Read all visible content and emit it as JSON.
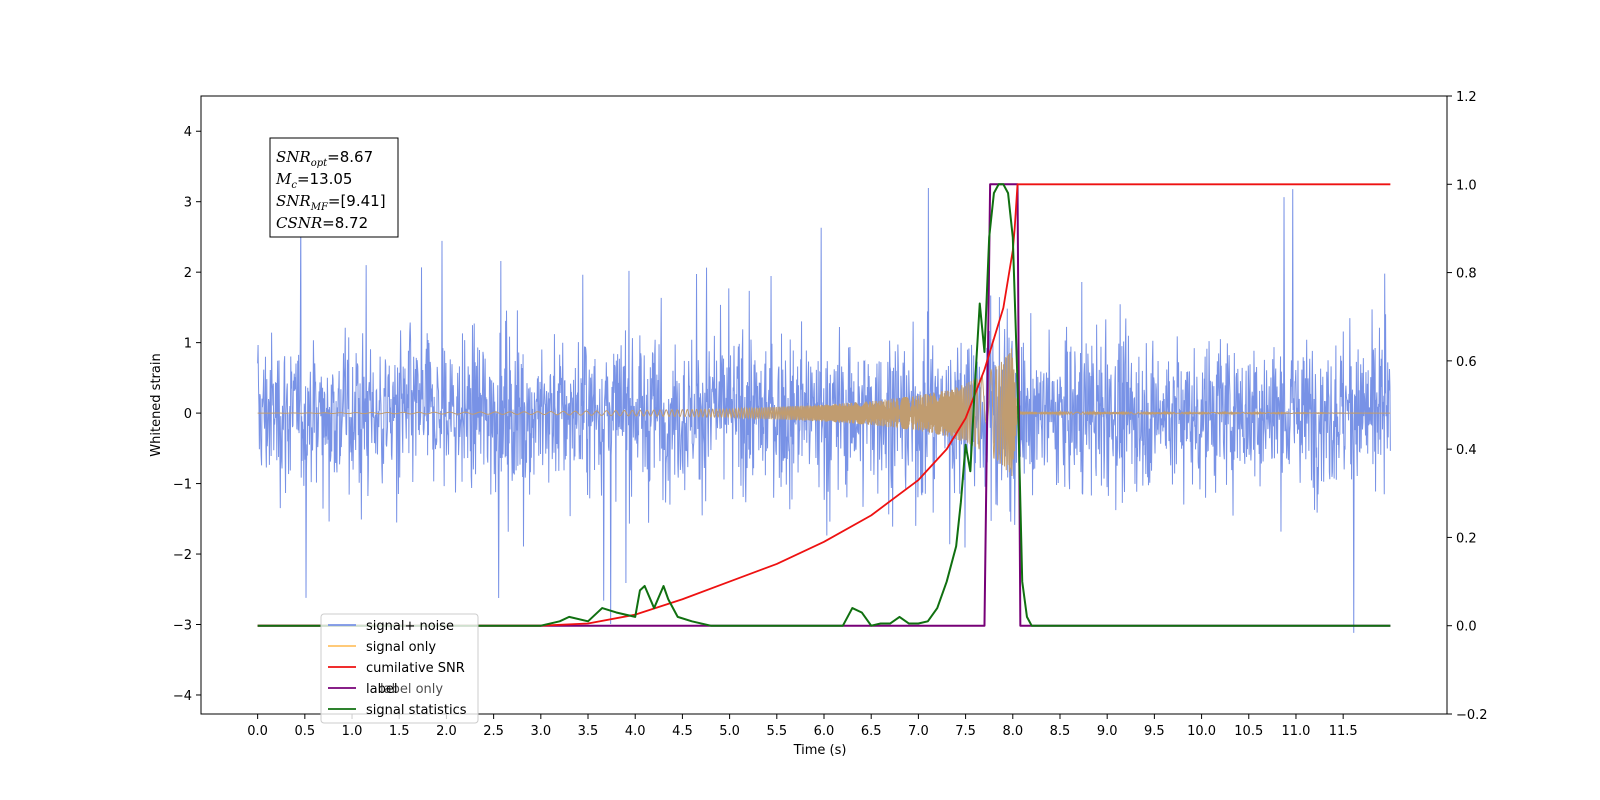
{
  "chart_data": {
    "type": "line",
    "title": "",
    "xlabel": "Time (s)",
    "ylabel": "Whitened strain",
    "xlim": [
      -0.6,
      12.6
    ],
    "ylim": [
      -4.27,
      4.5
    ],
    "y2lim": [
      -0.2,
      1.2
    ],
    "x_ticks": [
      "0.0",
      "0.5",
      "1.0",
      "1.5",
      "2.0",
      "2.5",
      "3.0",
      "3.5",
      "4.0",
      "4.5",
      "5.0",
      "5.5",
      "6.0",
      "6.5",
      "7.0",
      "7.5",
      "8.0",
      "8.5",
      "9.0",
      "9.5",
      "10.0",
      "10.5",
      "11.0",
      "11.5"
    ],
    "y_ticks": [
      "4",
      "3",
      "2",
      "1",
      "0",
      "−1",
      "−2",
      "−3",
      "−4"
    ],
    "y2_ticks": [
      "1.2",
      "1.0",
      "0.8",
      "0.6",
      "0.4",
      "0.2",
      "0.0",
      "−0.2"
    ],
    "grid": false,
    "legend_position": "bottom-left",
    "colors": {
      "noise": "#7892e6",
      "signal": "#ffc266",
      "signal_overlap": "#c09c70",
      "csnr": "#ee1111",
      "label": "#770077",
      "stats": "#107010"
    },
    "series": [
      {
        "name": "signal+ noise",
        "axis": "left",
        "description_values": {
          "x_range": [
            0.0,
            12.0
          ],
          "mean": 0.0,
          "typical_amplitude": 1.8,
          "peak_max": 4.1,
          "peak_min": -3.85
        }
      },
      {
        "name": "signal only",
        "axis": "left",
        "envelope": {
          "x": [
            0.0,
            3.0,
            5.0,
            6.0,
            6.5,
            7.0,
            7.3,
            7.5,
            7.7,
            7.9,
            8.0,
            8.05,
            12.0
          ],
          "amplitude": [
            0.0,
            0.02,
            0.06,
            0.12,
            0.17,
            0.25,
            0.33,
            0.42,
            0.55,
            0.75,
            0.95,
            0.02,
            0.0
          ]
        }
      },
      {
        "name": "cumilative SNR",
        "axis": "right",
        "x": [
          0.0,
          3.0,
          3.5,
          4.0,
          4.5,
          5.0,
          5.5,
          6.0,
          6.5,
          7.0,
          7.3,
          7.5,
          7.7,
          7.9,
          8.0,
          8.02,
          8.05,
          12.0
        ],
        "y": [
          0.0,
          0.0,
          0.005,
          0.025,
          0.06,
          0.1,
          0.14,
          0.19,
          0.25,
          0.33,
          0.4,
          0.47,
          0.58,
          0.72,
          0.85,
          0.9,
          1.0,
          1.0
        ]
      },
      {
        "name": "label",
        "axis": "right",
        "x": [
          0.0,
          7.7,
          7.76,
          8.05,
          8.08,
          12.0
        ],
        "y": [
          0.0,
          0.0,
          1.0,
          1.0,
          0.0,
          0.0
        ]
      },
      {
        "name": "label only",
        "axis": "right",
        "x": [],
        "y": []
      },
      {
        "name": "signal statistics",
        "axis": "right",
        "x": [
          0.0,
          3.0,
          3.2,
          3.3,
          3.5,
          3.65,
          3.8,
          4.0,
          4.05,
          4.1,
          4.2,
          4.3,
          4.35,
          4.45,
          4.6,
          4.8,
          5.0,
          6.0,
          6.2,
          6.3,
          6.4,
          6.5,
          6.6,
          6.7,
          6.8,
          6.9,
          7.0,
          7.1,
          7.2,
          7.3,
          7.4,
          7.45,
          7.5,
          7.55,
          7.6,
          7.65,
          7.7,
          7.75,
          7.8,
          7.85,
          7.9,
          7.95,
          8.0,
          8.05,
          8.1,
          8.15,
          8.2,
          12.0
        ],
        "y": [
          0.0,
          0.0,
          0.01,
          0.02,
          0.01,
          0.04,
          0.03,
          0.02,
          0.08,
          0.09,
          0.04,
          0.09,
          0.06,
          0.02,
          0.01,
          0.0,
          0.0,
          0.0,
          0.0,
          0.04,
          0.03,
          0.0,
          0.005,
          0.005,
          0.02,
          0.005,
          0.005,
          0.01,
          0.04,
          0.1,
          0.18,
          0.28,
          0.41,
          0.35,
          0.55,
          0.73,
          0.62,
          0.88,
          0.98,
          1.0,
          1.0,
          0.98,
          0.88,
          0.55,
          0.1,
          0.02,
          0.0,
          0.0
        ]
      }
    ],
    "annotation_box": [
      {
        "main": "SNR",
        "sub": "opt",
        "rest": "=8.67"
      },
      {
        "main": "M",
        "sub": "c",
        "rest": "=13.05"
      },
      {
        "main": "SNR",
        "sub": "MF",
        "rest": "=[9.41]"
      },
      {
        "main": "CSNR",
        "sub": "",
        "rest": "=8.72"
      }
    ]
  }
}
